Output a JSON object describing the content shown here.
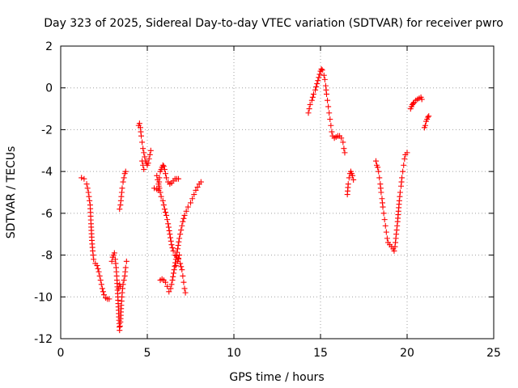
{
  "chart_data": {
    "type": "scatter",
    "title": "Day 323 of 2025, Sidereal Day-to-day VTEC variation (SDTVAR) for receiver pwro",
    "xlabel": "GPS time / hours",
    "ylabel": "SDTVAR / TECUs",
    "xlim": [
      0,
      25
    ],
    "ylim": [
      -12,
      2
    ],
    "xticks": [
      0,
      5,
      10,
      15,
      20,
      25
    ],
    "yticks": [
      -12,
      -10,
      -8,
      -6,
      -4,
      -2,
      0,
      2
    ],
    "xtick_labels": [
      "0",
      "5",
      "10",
      "15",
      "20",
      "25"
    ],
    "ytick_labels": [
      "-12",
      "-10",
      "-8",
      "-6",
      "-4",
      "-2",
      "0",
      "2"
    ],
    "grid": true,
    "marker": "+",
    "color": "#ff0000",
    "series": [
      {
        "name": "SDTVAR",
        "segments": [
          [
            [
              1.2,
              -4.3
            ],
            [
              1.35,
              -4.35
            ],
            [
              1.5,
              -4.6
            ],
            [
              1.6,
              -5.0
            ],
            [
              1.7,
              -5.6
            ],
            [
              1.75,
              -6.5
            ],
            [
              1.8,
              -7.3
            ],
            [
              1.85,
              -7.8
            ],
            [
              1.9,
              -8.2
            ],
            [
              2.0,
              -8.4
            ],
            [
              2.1,
              -8.5
            ],
            [
              2.2,
              -8.8
            ],
            [
              2.3,
              -9.2
            ],
            [
              2.4,
              -9.6
            ],
            [
              2.5,
              -9.9
            ],
            [
              2.6,
              -10.05
            ],
            [
              2.7,
              -10.1
            ],
            [
              2.8,
              -10.1
            ]
          ],
          [
            [
              2.95,
              -8.3
            ],
            [
              3.0,
              -8.1
            ],
            [
              3.05,
              -8.0
            ],
            [
              3.1,
              -7.9
            ],
            [
              3.15,
              -8.2
            ],
            [
              3.2,
              -8.6
            ],
            [
              3.25,
              -9.2
            ],
            [
              3.3,
              -10.0
            ],
            [
              3.35,
              -10.8
            ],
            [
              3.4,
              -11.6
            ],
            [
              3.45,
              -11.2
            ],
            [
              3.5,
              -10.4
            ],
            [
              3.55,
              -9.8
            ],
            [
              3.6,
              -9.4
            ],
            [
              3.65,
              -9.2
            ],
            [
              3.7,
              -9.0
            ],
            [
              3.75,
              -8.6
            ],
            [
              3.8,
              -8.3
            ]
          ],
          [
            [
              3.35,
              -9.6
            ],
            [
              3.4,
              -9.4
            ],
            [
              3.45,
              -9.5
            ]
          ],
          [
            [
              3.4,
              -5.8
            ],
            [
              3.45,
              -5.6
            ],
            [
              3.5,
              -5.2
            ],
            [
              3.55,
              -4.8
            ],
            [
              3.6,
              -4.5
            ],
            [
              3.65,
              -4.3
            ],
            [
              3.7,
              -4.1
            ],
            [
              3.75,
              -4.0
            ]
          ],
          [
            [
              4.5,
              -1.8
            ],
            [
              4.55,
              -1.7
            ],
            [
              4.6,
              -1.9
            ],
            [
              4.65,
              -2.3
            ],
            [
              4.7,
              -2.6
            ],
            [
              4.75,
              -2.9
            ],
            [
              4.8,
              -3.1
            ],
            [
              4.85,
              -3.3
            ],
            [
              4.9,
              -3.5
            ],
            [
              4.95,
              -3.6
            ],
            [
              5.0,
              -3.7
            ],
            [
              5.05,
              -3.6
            ],
            [
              5.1,
              -3.4
            ],
            [
              5.15,
              -3.2
            ],
            [
              5.2,
              -3.0
            ]
          ],
          [
            [
              4.7,
              -3.5
            ],
            [
              4.75,
              -3.7
            ],
            [
              4.8,
              -3.9
            ]
          ],
          [
            [
              5.4,
              -4.8
            ],
            [
              5.55,
              -4.85
            ],
            [
              5.65,
              -4.9
            ],
            [
              5.7,
              -4.3
            ],
            [
              5.75,
              -4.0
            ],
            [
              5.8,
              -3.9
            ],
            [
              5.85,
              -3.8
            ],
            [
              5.9,
              -3.7
            ],
            [
              5.95,
              -3.75
            ],
            [
              6.0,
              -3.9
            ],
            [
              6.05,
              -4.1
            ],
            [
              6.1,
              -4.3
            ],
            [
              6.2,
              -4.5
            ],
            [
              6.3,
              -4.6
            ],
            [
              6.4,
              -4.55
            ],
            [
              6.5,
              -4.45
            ],
            [
              6.6,
              -4.35
            ],
            [
              6.7,
              -4.35
            ],
            [
              6.8,
              -4.35
            ]
          ],
          [
            [
              5.55,
              -4.2
            ],
            [
              5.6,
              -4.4
            ],
            [
              5.65,
              -4.6
            ],
            [
              5.7,
              -4.8
            ],
            [
              5.75,
              -5.0
            ],
            [
              5.8,
              -5.2
            ],
            [
              5.9,
              -5.4
            ],
            [
              6.0,
              -5.8
            ],
            [
              6.1,
              -6.1
            ],
            [
              6.2,
              -6.5
            ],
            [
              6.3,
              -7.0
            ],
            [
              6.4,
              -7.5
            ],
            [
              6.5,
              -7.8
            ],
            [
              6.6,
              -8.0
            ],
            [
              6.7,
              -8.1
            ],
            [
              6.8,
              -8.2
            ],
            [
              6.9,
              -8.4
            ],
            [
              7.0,
              -8.7
            ],
            [
              7.05,
              -9.0
            ],
            [
              7.1,
              -9.3
            ],
            [
              7.15,
              -9.6
            ],
            [
              7.2,
              -9.8
            ]
          ],
          [
            [
              5.75,
              -9.2
            ],
            [
              5.85,
              -9.15
            ],
            [
              5.95,
              -9.2
            ],
            [
              6.05,
              -9.3
            ],
            [
              6.15,
              -9.5
            ],
            [
              6.25,
              -9.75
            ],
            [
              6.35,
              -9.6
            ],
            [
              6.45,
              -9.2
            ],
            [
              6.55,
              -8.7
            ],
            [
              6.65,
              -8.2
            ],
            [
              6.75,
              -7.7
            ],
            [
              6.85,
              -7.2
            ],
            [
              6.95,
              -6.8
            ],
            [
              7.05,
              -6.4
            ],
            [
              7.15,
              -6.1
            ],
            [
              7.25,
              -5.9
            ],
            [
              7.35,
              -5.7
            ],
            [
              7.5,
              -5.5
            ],
            [
              7.6,
              -5.3
            ],
            [
              7.7,
              -5.1
            ],
            [
              7.8,
              -4.9
            ],
            [
              7.9,
              -4.75
            ],
            [
              8.0,
              -4.6
            ],
            [
              8.1,
              -4.5
            ]
          ],
          [
            [
              6.65,
              -8.5
            ],
            [
              6.75,
              -8.3
            ],
            [
              6.85,
              -8.0
            ]
          ],
          [
            [
              14.3,
              -1.2
            ],
            [
              14.35,
              -1.0
            ],
            [
              14.4,
              -0.8
            ],
            [
              14.5,
              -0.6
            ],
            [
              14.6,
              -0.3
            ],
            [
              14.7,
              -0.1
            ],
            [
              14.8,
              0.2
            ],
            [
              14.9,
              0.5
            ],
            [
              15.0,
              0.8
            ],
            [
              15.05,
              0.9
            ],
            [
              15.1,
              0.85
            ],
            [
              15.2,
              0.6
            ],
            [
              15.25,
              0.4
            ],
            [
              15.3,
              0.1
            ],
            [
              15.35,
              -0.3
            ],
            [
              15.4,
              -0.6
            ],
            [
              15.45,
              -0.9
            ],
            [
              15.5,
              -1.2
            ],
            [
              15.55,
              -1.5
            ],
            [
              15.6,
              -1.8
            ],
            [
              15.65,
              -2.1
            ],
            [
              15.7,
              -2.3
            ],
            [
              15.8,
              -2.4
            ],
            [
              15.9,
              -2.35
            ],
            [
              16.0,
              -2.3
            ],
            [
              16.1,
              -2.3
            ],
            [
              16.2,
              -2.4
            ],
            [
              16.3,
              -2.6
            ],
            [
              16.35,
              -2.9
            ],
            [
              16.4,
              -3.1
            ]
          ],
          [
            [
              16.55,
              -5.1
            ],
            [
              16.6,
              -4.6
            ],
            [
              16.65,
              -4.3
            ],
            [
              16.7,
              -4.1
            ],
            [
              16.75,
              -4.0
            ],
            [
              16.8,
              -4.1
            ],
            [
              16.85,
              -4.2
            ],
            [
              16.9,
              -4.4
            ]
          ],
          [
            [
              18.2,
              -3.5
            ],
            [
              18.25,
              -3.7
            ],
            [
              18.3,
              -3.8
            ],
            [
              18.35,
              -4.0
            ],
            [
              18.4,
              -4.3
            ],
            [
              18.45,
              -4.6
            ],
            [
              18.5,
              -5.0
            ],
            [
              18.55,
              -5.3
            ],
            [
              18.6,
              -5.7
            ],
            [
              18.65,
              -6.0
            ],
            [
              18.7,
              -6.3
            ],
            [
              18.75,
              -6.6
            ],
            [
              18.8,
              -6.9
            ],
            [
              18.85,
              -7.2
            ],
            [
              18.9,
              -7.4
            ],
            [
              19.0,
              -7.5
            ],
            [
              19.1,
              -7.6
            ],
            [
              19.2,
              -7.7
            ],
            [
              19.25,
              -7.8
            ],
            [
              19.3,
              -7.6
            ],
            [
              19.35,
              -7.2
            ],
            [
              19.4,
              -6.8
            ],
            [
              19.45,
              -6.4
            ],
            [
              19.5,
              -5.9
            ],
            [
              19.55,
              -5.4
            ],
            [
              19.6,
              -5.0
            ],
            [
              19.65,
              -4.7
            ],
            [
              19.7,
              -4.3
            ],
            [
              19.75,
              -4.0
            ],
            [
              19.8,
              -3.7
            ],
            [
              19.85,
              -3.4
            ],
            [
              19.9,
              -3.2
            ],
            [
              20.0,
              -3.1
            ]
          ],
          [
            [
              20.2,
              -1.0
            ],
            [
              20.25,
              -0.9
            ],
            [
              20.3,
              -0.8
            ],
            [
              20.35,
              -0.75
            ],
            [
              20.4,
              -0.7
            ],
            [
              20.5,
              -0.6
            ],
            [
              20.6,
              -0.55
            ],
            [
              20.7,
              -0.5
            ],
            [
              20.8,
              -0.45
            ],
            [
              20.85,
              -0.55
            ]
          ],
          [
            [
              21.0,
              -1.9
            ],
            [
              21.05,
              -1.8
            ],
            [
              21.1,
              -1.6
            ],
            [
              21.15,
              -1.5
            ],
            [
              21.2,
              -1.4
            ],
            [
              21.25,
              -1.35
            ]
          ]
        ]
      }
    ]
  }
}
